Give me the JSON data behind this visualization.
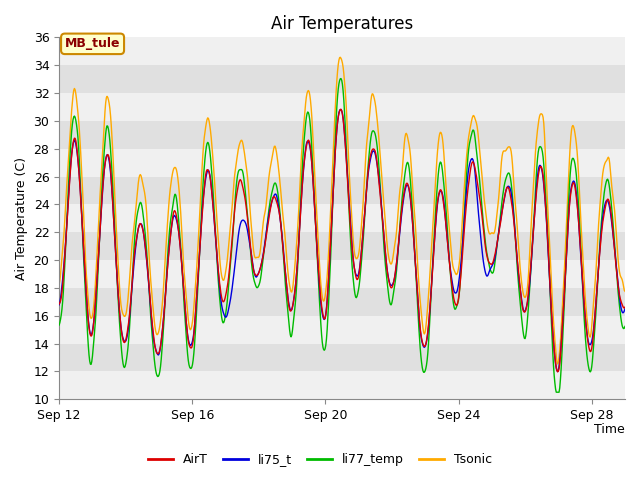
{
  "title": "Air Temperatures",
  "ylabel": "Air Temperature (C)",
  "xlabel": "Time",
  "ylim": [
    10,
    36
  ],
  "yticks": [
    10,
    12,
    14,
    16,
    18,
    20,
    22,
    24,
    26,
    28,
    30,
    32,
    34,
    36
  ],
  "xtick_labels": [
    "Sep 12",
    "Sep 16",
    "Sep 20",
    "Sep 24",
    "Sep 28"
  ],
  "station_label": "MB_tule",
  "colors": {
    "AirT": "#dd0000",
    "li75_t": "#0000dd",
    "li77_temp": "#00bb00",
    "Tsonic": "#ffaa00"
  },
  "legend_entries": [
    "AirT",
    "li75_t",
    "li77_temp",
    "Tsonic"
  ],
  "bg_color": "#ffffff",
  "title_fontsize": 12,
  "label_fontsize": 9,
  "tick_fontsize": 9
}
